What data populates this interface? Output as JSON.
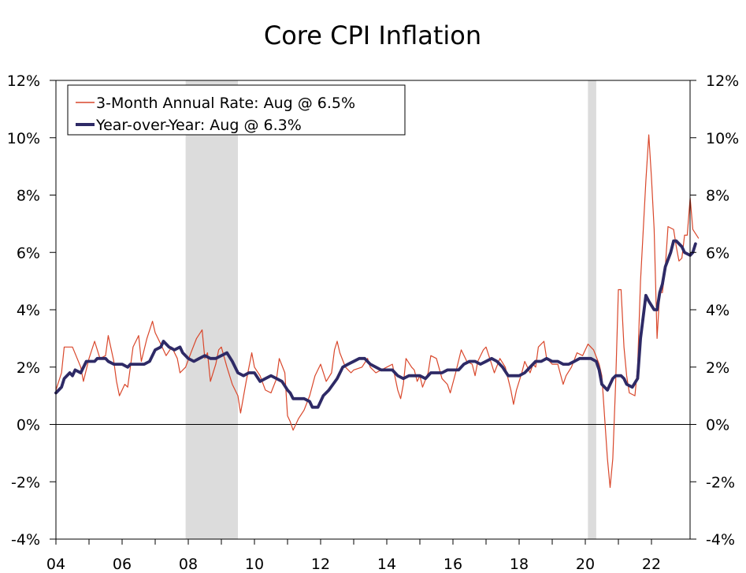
{
  "chart_data": {
    "type": "line",
    "title": "Core CPI Inflation",
    "xlabel": "",
    "ylabel": "",
    "x_range": [
      2004.0,
      2022.75
    ],
    "ylim": [
      -4,
      12
    ],
    "y_ticks": [
      -4,
      -2,
      0,
      2,
      4,
      6,
      8,
      10,
      12
    ],
    "y_tick_labels": [
      "-4%",
      "-2%",
      "0%",
      "2%",
      "4%",
      "6%",
      "8%",
      "10%",
      "12%"
    ],
    "x_ticks": [
      2004,
      2006,
      2008,
      2010,
      2012,
      2014,
      2016,
      2018,
      2020,
      2022
    ],
    "x_tick_labels": [
      "04",
      "06",
      "08",
      "10",
      "12",
      "14",
      "16",
      "18",
      "20",
      "22"
    ],
    "recessions": [
      [
        2007.92,
        2009.5
      ],
      [
        2020.08,
        2020.33
      ]
    ],
    "zero_line": true,
    "grid": false,
    "legend_position": "top-left",
    "colors": {
      "annual_3m": "#d9472b",
      "yoy": "#2e2a66",
      "recession": "#dcdcdc"
    },
    "series": [
      {
        "name": "3-Month Annual Rate: Aug @ 6.5%",
        "style": "thin",
        "points": [
          [
            2004.0,
            1.2
          ],
          [
            2004.17,
            1.8
          ],
          [
            2004.25,
            2.7
          ],
          [
            2004.5,
            2.7
          ],
          [
            2004.75,
            2.0
          ],
          [
            2004.83,
            1.5
          ],
          [
            2005.0,
            2.3
          ],
          [
            2005.17,
            2.9
          ],
          [
            2005.33,
            2.3
          ],
          [
            2005.5,
            2.4
          ],
          [
            2005.58,
            3.1
          ],
          [
            2005.75,
            2.2
          ],
          [
            2005.83,
            1.5
          ],
          [
            2005.92,
            1.0
          ],
          [
            2006.08,
            1.4
          ],
          [
            2006.17,
            1.3
          ],
          [
            2006.33,
            2.7
          ],
          [
            2006.5,
            3.1
          ],
          [
            2006.58,
            2.2
          ],
          [
            2006.75,
            3.0
          ],
          [
            2006.92,
            3.6
          ],
          [
            2007.0,
            3.2
          ],
          [
            2007.17,
            2.8
          ],
          [
            2007.33,
            2.4
          ],
          [
            2007.5,
            2.7
          ],
          [
            2007.67,
            2.3
          ],
          [
            2007.75,
            1.8
          ],
          [
            2007.92,
            2.0
          ],
          [
            2008.08,
            2.5
          ],
          [
            2008.25,
            3.0
          ],
          [
            2008.42,
            3.3
          ],
          [
            2008.5,
            2.3
          ],
          [
            2008.58,
            2.5
          ],
          [
            2008.67,
            1.5
          ],
          [
            2008.83,
            2.1
          ],
          [
            2008.92,
            2.6
          ],
          [
            2009.0,
            2.7
          ],
          [
            2009.17,
            2.0
          ],
          [
            2009.33,
            1.4
          ],
          [
            2009.5,
            1.0
          ],
          [
            2009.58,
            0.4
          ],
          [
            2009.75,
            1.5
          ],
          [
            2009.92,
            2.5
          ],
          [
            2010.0,
            2.0
          ],
          [
            2010.17,
            1.7
          ],
          [
            2010.33,
            1.2
          ],
          [
            2010.5,
            1.1
          ],
          [
            2010.67,
            1.6
          ],
          [
            2010.75,
            2.3
          ],
          [
            2010.92,
            1.8
          ],
          [
            2011.0,
            0.3
          ],
          [
            2011.08,
            0.1
          ],
          [
            2011.17,
            -0.2
          ],
          [
            2011.33,
            0.2
          ],
          [
            2011.5,
            0.5
          ],
          [
            2011.67,
            1.0
          ],
          [
            2011.83,
            1.7
          ],
          [
            2012.0,
            2.1
          ],
          [
            2012.17,
            1.5
          ],
          [
            2012.33,
            1.8
          ],
          [
            2012.42,
            2.6
          ],
          [
            2012.5,
            2.9
          ],
          [
            2012.58,
            2.5
          ],
          [
            2012.75,
            2.0
          ],
          [
            2012.92,
            1.8
          ],
          [
            2013.0,
            1.9
          ],
          [
            2013.25,
            2.0
          ],
          [
            2013.42,
            2.3
          ],
          [
            2013.5,
            2.0
          ],
          [
            2013.67,
            1.8
          ],
          [
            2013.83,
            1.9
          ],
          [
            2014.0,
            2.0
          ],
          [
            2014.17,
            2.1
          ],
          [
            2014.33,
            1.2
          ],
          [
            2014.42,
            0.9
          ],
          [
            2014.5,
            1.4
          ],
          [
            2014.58,
            2.3
          ],
          [
            2014.75,
            2.0
          ],
          [
            2014.83,
            1.9
          ],
          [
            2014.92,
            1.5
          ],
          [
            2015.0,
            1.7
          ],
          [
            2015.08,
            1.3
          ],
          [
            2015.25,
            1.8
          ],
          [
            2015.33,
            2.4
          ],
          [
            2015.5,
            2.3
          ],
          [
            2015.67,
            1.6
          ],
          [
            2015.83,
            1.4
          ],
          [
            2015.92,
            1.1
          ],
          [
            2016.08,
            1.8
          ],
          [
            2016.25,
            2.6
          ],
          [
            2016.42,
            2.2
          ],
          [
            2016.58,
            2.1
          ],
          [
            2016.67,
            1.7
          ],
          [
            2016.75,
            2.2
          ],
          [
            2016.92,
            2.6
          ],
          [
            2017.0,
            2.7
          ],
          [
            2017.17,
            2.1
          ],
          [
            2017.25,
            1.8
          ],
          [
            2017.42,
            2.3
          ],
          [
            2017.58,
            2.0
          ],
          [
            2017.75,
            1.2
          ],
          [
            2017.83,
            0.7
          ],
          [
            2017.92,
            1.2
          ],
          [
            2018.08,
            1.8
          ],
          [
            2018.17,
            2.2
          ],
          [
            2018.33,
            1.8
          ],
          [
            2018.42,
            2.1
          ],
          [
            2018.5,
            2.0
          ],
          [
            2018.58,
            2.7
          ],
          [
            2018.75,
            2.9
          ],
          [
            2018.83,
            2.3
          ],
          [
            2018.92,
            2.2
          ],
          [
            2019.0,
            2.1
          ],
          [
            2019.17,
            2.1
          ],
          [
            2019.33,
            1.4
          ],
          [
            2019.42,
            1.7
          ],
          [
            2019.58,
            2.0
          ],
          [
            2019.75,
            2.5
          ],
          [
            2019.92,
            2.4
          ],
          [
            2020.0,
            2.6
          ],
          [
            2020.08,
            2.8
          ],
          [
            2020.25,
            2.6
          ],
          [
            2020.42,
            2.1
          ],
          [
            2020.5,
            1.7
          ],
          [
            2020.58,
            0.3
          ],
          [
            2020.67,
            -1.2
          ],
          [
            2020.75,
            -2.2
          ],
          [
            2020.83,
            -1.2
          ],
          [
            2020.92,
            1.5
          ],
          [
            2021.0,
            4.7
          ],
          [
            2021.08,
            4.7
          ],
          [
            2021.17,
            2.7
          ],
          [
            2021.25,
            1.7
          ],
          [
            2021.33,
            1.1
          ],
          [
            2021.5,
            1.0
          ],
          [
            2021.58,
            2.0
          ],
          [
            2021.67,
            5.0
          ],
          [
            2021.83,
            8.5
          ],
          [
            2021.92,
            10.1
          ],
          [
            2022.0,
            8.6
          ],
          [
            2022.08,
            6.8
          ],
          [
            2022.17,
            3.0
          ],
          [
            2022.25,
            4.6
          ],
          [
            2022.33,
            4.6
          ],
          [
            2022.42,
            5.5
          ],
          [
            2022.5,
            6.9
          ],
          [
            2022.67,
            6.8
          ],
          [
            2022.75,
            6.2
          ],
          [
            2022.83,
            5.7
          ],
          [
            2022.92,
            5.8
          ],
          [
            2023.0,
            6.6
          ],
          [
            2023.08,
            6.6
          ],
          [
            2023.17,
            7.9
          ],
          [
            2023.25,
            6.8
          ],
          [
            2023.42,
            6.5
          ]
        ]
      },
      {
        "name": "Year-over-Year: Aug @ 6.3%",
        "style": "thick",
        "points": [
          [
            2004.0,
            1.1
          ],
          [
            2004.17,
            1.3
          ],
          [
            2004.25,
            1.6
          ],
          [
            2004.42,
            1.8
          ],
          [
            2004.5,
            1.7
          ],
          [
            2004.58,
            1.9
          ],
          [
            2004.75,
            1.8
          ],
          [
            2004.92,
            2.2
          ],
          [
            2005.0,
            2.2
          ],
          [
            2005.17,
            2.2
          ],
          [
            2005.25,
            2.3
          ],
          [
            2005.5,
            2.3
          ],
          [
            2005.58,
            2.2
          ],
          [
            2005.75,
            2.1
          ],
          [
            2006.0,
            2.1
          ],
          [
            2006.17,
            2.0
          ],
          [
            2006.25,
            2.1
          ],
          [
            2006.5,
            2.1
          ],
          [
            2006.67,
            2.1
          ],
          [
            2006.83,
            2.2
          ],
          [
            2007.0,
            2.6
          ],
          [
            2007.17,
            2.7
          ],
          [
            2007.25,
            2.9
          ],
          [
            2007.42,
            2.7
          ],
          [
            2007.58,
            2.6
          ],
          [
            2007.75,
            2.7
          ],
          [
            2007.83,
            2.5
          ],
          [
            2008.0,
            2.3
          ],
          [
            2008.17,
            2.2
          ],
          [
            2008.33,
            2.3
          ],
          [
            2008.5,
            2.4
          ],
          [
            2008.67,
            2.3
          ],
          [
            2008.83,
            2.3
          ],
          [
            2009.0,
            2.4
          ],
          [
            2009.17,
            2.5
          ],
          [
            2009.33,
            2.2
          ],
          [
            2009.5,
            1.8
          ],
          [
            2009.67,
            1.7
          ],
          [
            2009.83,
            1.8
          ],
          [
            2010.0,
            1.8
          ],
          [
            2010.17,
            1.5
          ],
          [
            2010.33,
            1.6
          ],
          [
            2010.5,
            1.7
          ],
          [
            2010.67,
            1.6
          ],
          [
            2010.83,
            1.5
          ],
          [
            2011.0,
            1.2
          ],
          [
            2011.08,
            1.1
          ],
          [
            2011.17,
            0.9
          ],
          [
            2011.33,
            0.9
          ],
          [
            2011.5,
            0.9
          ],
          [
            2011.67,
            0.8
          ],
          [
            2011.75,
            0.6
          ],
          [
            2011.92,
            0.6
          ],
          [
            2012.08,
            1.0
          ],
          [
            2012.25,
            1.2
          ],
          [
            2012.5,
            1.6
          ],
          [
            2012.67,
            2.0
          ],
          [
            2012.83,
            2.1
          ],
          [
            2013.0,
            2.2
          ],
          [
            2013.17,
            2.3
          ],
          [
            2013.33,
            2.3
          ],
          [
            2013.5,
            2.1
          ],
          [
            2013.67,
            2.0
          ],
          [
            2013.83,
            1.9
          ],
          [
            2014.0,
            1.9
          ],
          [
            2014.17,
            1.9
          ],
          [
            2014.33,
            1.7
          ],
          [
            2014.5,
            1.6
          ],
          [
            2014.67,
            1.7
          ],
          [
            2014.83,
            1.7
          ],
          [
            2015.0,
            1.7
          ],
          [
            2015.17,
            1.6
          ],
          [
            2015.33,
            1.8
          ],
          [
            2015.5,
            1.8
          ],
          [
            2015.67,
            1.8
          ],
          [
            2015.83,
            1.9
          ],
          [
            2016.0,
            1.9
          ],
          [
            2016.17,
            1.9
          ],
          [
            2016.33,
            2.1
          ],
          [
            2016.5,
            2.2
          ],
          [
            2016.67,
            2.2
          ],
          [
            2016.83,
            2.1
          ],
          [
            2017.0,
            2.2
          ],
          [
            2017.17,
            2.3
          ],
          [
            2017.33,
            2.2
          ],
          [
            2017.5,
            2.0
          ],
          [
            2017.67,
            1.7
          ],
          [
            2017.83,
            1.7
          ],
          [
            2018.0,
            1.7
          ],
          [
            2018.17,
            1.8
          ],
          [
            2018.33,
            2.0
          ],
          [
            2018.5,
            2.2
          ],
          [
            2018.67,
            2.2
          ],
          [
            2018.83,
            2.3
          ],
          [
            2019.0,
            2.2
          ],
          [
            2019.17,
            2.2
          ],
          [
            2019.33,
            2.1
          ],
          [
            2019.5,
            2.1
          ],
          [
            2019.67,
            2.2
          ],
          [
            2019.83,
            2.3
          ],
          [
            2020.0,
            2.3
          ],
          [
            2020.17,
            2.3
          ],
          [
            2020.33,
            2.2
          ],
          [
            2020.42,
            1.9
          ],
          [
            2020.5,
            1.4
          ],
          [
            2020.67,
            1.2
          ],
          [
            2020.83,
            1.6
          ],
          [
            2020.92,
            1.7
          ],
          [
            2021.08,
            1.7
          ],
          [
            2021.17,
            1.6
          ],
          [
            2021.25,
            1.4
          ],
          [
            2021.42,
            1.3
          ],
          [
            2021.58,
            1.6
          ],
          [
            2021.67,
            3.0
          ],
          [
            2021.83,
            4.5
          ],
          [
            2021.92,
            4.3
          ],
          [
            2022.08,
            4.0
          ],
          [
            2022.17,
            4.0
          ],
          [
            2022.25,
            4.6
          ],
          [
            2022.33,
            4.9
          ],
          [
            2022.42,
            5.5
          ],
          [
            2022.58,
            6.0
          ],
          [
            2022.67,
            6.4
          ],
          [
            2022.75,
            6.4
          ],
          [
            2022.92,
            6.2
          ],
          [
            2023.0,
            6.0
          ],
          [
            2023.17,
            5.9
          ],
          [
            2023.25,
            6.0
          ],
          [
            2023.33,
            6.3
          ]
        ]
      }
    ]
  }
}
